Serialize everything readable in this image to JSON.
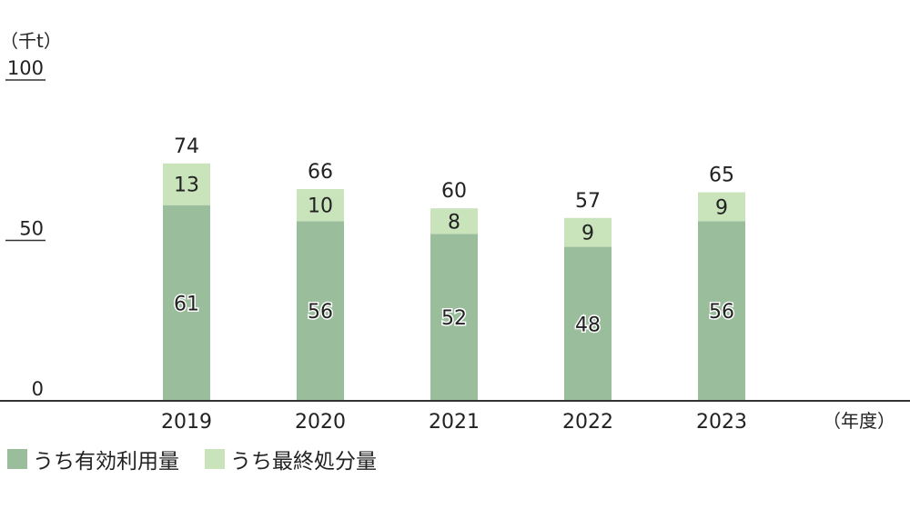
{
  "chart_data": {
    "type": "bar",
    "stacked": true,
    "unit_label": "（千t）",
    "x_unit_label": "（年度）",
    "categories": [
      "2019",
      "2020",
      "2021",
      "2022",
      "2023"
    ],
    "series": [
      {
        "name": "うち有効利用量",
        "values": [
          61,
          56,
          52,
          48,
          56
        ],
        "color": "#9abd9c"
      },
      {
        "name": "うち最終処分量",
        "values": [
          13,
          10,
          8,
          9,
          9
        ],
        "color": "#c9e3bb"
      }
    ],
    "totals": [
      74,
      66,
      60,
      57,
      65
    ],
    "ylim": [
      0,
      100
    ],
    "yticks": [
      0,
      50,
      100
    ],
    "grid": false,
    "legend_position": "bottom-left"
  }
}
